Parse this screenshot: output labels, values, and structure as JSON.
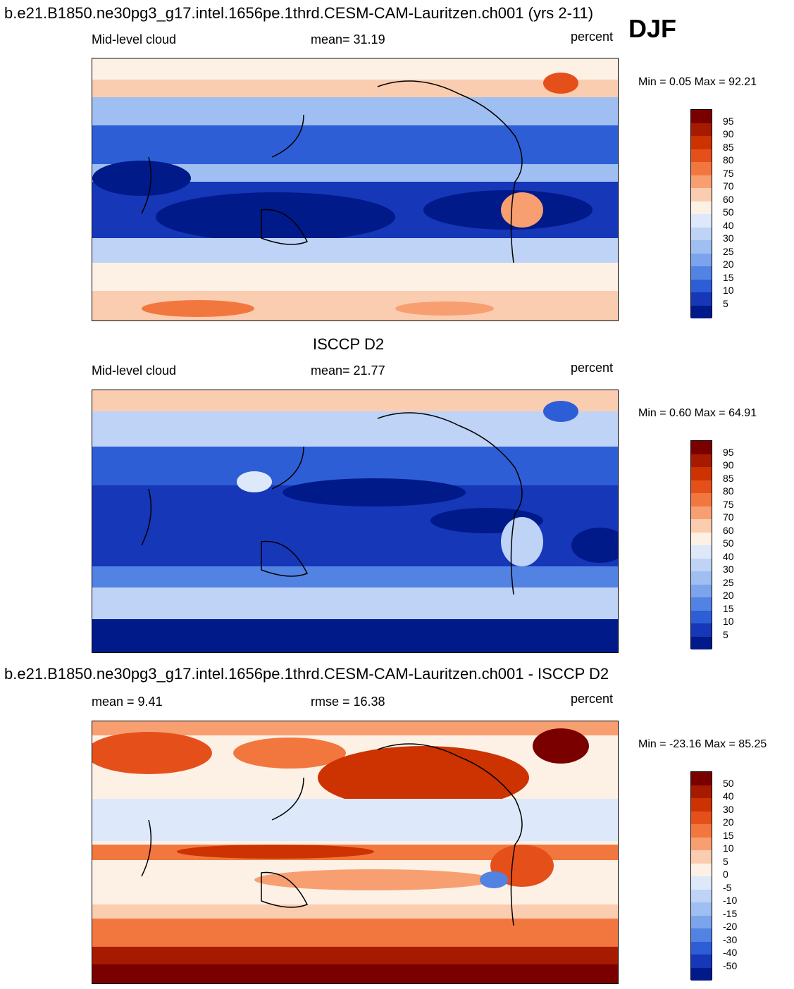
{
  "season": "DJF",
  "figure_title": "b.e21.B1850.ne30pg3_g17.intel.1656pe.1thrd.CESM-CAM-Lauritzen.ch001 (yrs 2-11)",
  "panels": [
    {
      "id": "model",
      "left_label": "Mid-level cloud",
      "center_label": "mean=  31.19",
      "right_label": "percent",
      "min_max": "Min =   0.05 Max =  92.21",
      "colorbar_labels": [
        "95",
        "90",
        "85",
        "80",
        "75",
        "70",
        "60",
        "50",
        "40",
        "30",
        "25",
        "20",
        "15",
        "10",
        "5"
      ],
      "colorbar_colors": [
        "#7a0000",
        "#a61a00",
        "#cc3300",
        "#e5501a",
        "#f2773f",
        "#f89f72",
        "#fbcdb0",
        "#fdf1e6",
        "#dde9fa",
        "#bfd3f6",
        "#9fbff2",
        "#7ba4ec",
        "#5283e3",
        "#2e5ed6",
        "#1537b8",
        "#001a8a"
      ]
    },
    {
      "id": "obs",
      "header": "ISCCP D2",
      "left_label": "Mid-level cloud",
      "center_label": "mean=  21.77",
      "right_label": "percent",
      "min_max": "Min =   0.60 Max =  64.91",
      "colorbar_labels": [
        "95",
        "90",
        "85",
        "80",
        "75",
        "70",
        "60",
        "50",
        "40",
        "30",
        "25",
        "20",
        "15",
        "10",
        "5"
      ],
      "colorbar_colors": [
        "#7a0000",
        "#a61a00",
        "#cc3300",
        "#e5501a",
        "#f2773f",
        "#f89f72",
        "#fbcdb0",
        "#fdf1e6",
        "#dde9fa",
        "#bfd3f6",
        "#9fbff2",
        "#7ba4ec",
        "#5283e3",
        "#2e5ed6",
        "#1537b8",
        "#001a8a"
      ]
    },
    {
      "id": "diff",
      "header": "b.e21.B1850.ne30pg3_g17.intel.1656pe.1thrd.CESM-CAM-Lauritzen.ch001 - ISCCP D2",
      "left_label": "mean =   9.41",
      "center_label": "rmse =  16.38",
      "right_label": "percent",
      "min_max": "Min = -23.16 Max =  85.25",
      "colorbar_labels": [
        "50",
        "40",
        "30",
        "20",
        "15",
        "10",
        "5",
        "0",
        "-5",
        "-10",
        "-15",
        "-20",
        "-30",
        "-40",
        "-50"
      ],
      "colorbar_colors": [
        "#7a0000",
        "#a61a00",
        "#cc3300",
        "#e5501a",
        "#f2773f",
        "#f89f72",
        "#fbcdb0",
        "#fdf1e6",
        "#dde9fa",
        "#bfd3f6",
        "#9fbff2",
        "#7ba4ec",
        "#5283e3",
        "#2e5ed6",
        "#1537b8",
        "#001a8a"
      ]
    }
  ]
}
